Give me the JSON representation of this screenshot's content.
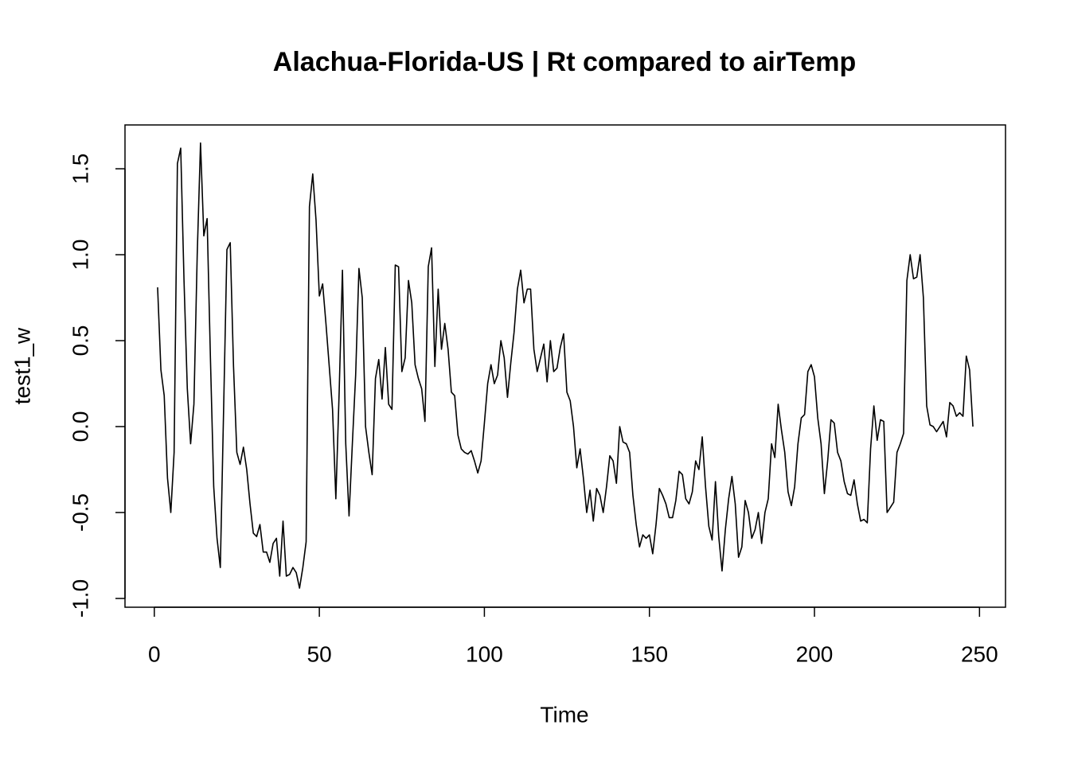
{
  "chart_data": {
    "type": "line",
    "title": "Alachua-Florida-US | Rt compared to airTemp",
    "xlabel": "Time",
    "ylabel": "test1_w",
    "color": "#000000",
    "x": [
      1,
      2,
      3,
      4,
      5,
      6,
      7,
      8,
      9,
      10,
      11,
      12,
      13,
      14,
      15,
      16,
      17,
      18,
      19,
      20,
      21,
      22,
      23,
      24,
      25,
      26,
      27,
      28,
      29,
      30,
      31,
      32,
      33,
      34,
      35,
      36,
      37,
      38,
      39,
      40,
      41,
      42,
      43,
      44,
      45,
      46,
      47,
      48,
      49,
      50,
      51,
      52,
      53,
      54,
      55,
      56,
      57,
      58,
      59,
      60,
      61,
      62,
      63,
      64,
      65,
      66,
      67,
      68,
      69,
      70,
      71,
      72,
      73,
      74,
      75,
      76,
      77,
      78,
      79,
      80,
      81,
      82,
      83,
      84,
      85,
      86,
      87,
      88,
      89,
      90,
      91,
      92,
      93,
      94,
      95,
      96,
      97,
      98,
      99,
      100,
      101,
      102,
      103,
      104,
      105,
      106,
      107,
      108,
      109,
      110,
      111,
      112,
      113,
      114,
      115,
      116,
      117,
      118,
      119,
      120,
      121,
      122,
      123,
      124,
      125,
      126,
      127,
      128,
      129,
      130,
      131,
      132,
      133,
      134,
      135,
      136,
      137,
      138,
      139,
      140,
      141,
      142,
      143,
      144,
      145,
      146,
      147,
      148,
      149,
      150,
      151,
      152,
      153,
      154,
      155,
      156,
      157,
      158,
      159,
      160,
      161,
      162,
      163,
      164,
      165,
      166,
      167,
      168,
      169,
      170,
      171,
      172,
      173,
      174,
      175,
      176,
      177,
      178,
      179,
      180,
      181,
      182,
      183,
      184,
      185,
      186,
      187,
      188,
      189,
      190,
      191,
      192,
      193,
      194,
      195,
      196,
      197,
      198,
      199,
      200,
      201,
      202,
      203,
      204,
      205,
      206,
      207,
      208,
      209,
      210,
      211,
      212,
      213,
      214,
      215,
      216,
      217,
      218,
      219,
      220,
      221,
      222,
      223,
      224,
      225,
      226,
      227,
      228,
      229,
      230,
      231,
      232,
      233,
      234,
      235,
      236,
      237,
      238,
      239,
      240,
      241,
      242,
      243,
      244,
      245,
      246,
      247,
      248
    ],
    "values": [
      0.81,
      0.33,
      0.18,
      -0.3,
      -0.5,
      -0.15,
      1.53,
      1.62,
      0.85,
      0.22,
      -0.1,
      0.13,
      1.0,
      1.65,
      1.11,
      1.21,
      0.4,
      -0.35,
      -0.65,
      -0.82,
      0.1,
      1.03,
      1.07,
      0.35,
      -0.15,
      -0.22,
      -0.12,
      -0.25,
      -0.45,
      -0.62,
      -0.64,
      -0.57,
      -0.73,
      -0.73,
      -0.79,
      -0.68,
      -0.65,
      -0.87,
      -0.55,
      -0.87,
      -0.86,
      -0.82,
      -0.85,
      -0.94,
      -0.82,
      -0.67,
      1.28,
      1.47,
      1.2,
      0.76,
      0.83,
      0.6,
      0.35,
      0.1,
      -0.42,
      0.2,
      0.91,
      -0.1,
      -0.52,
      -0.1,
      0.3,
      0.92,
      0.75,
      0.0,
      -0.15,
      -0.28,
      0.28,
      0.39,
      0.16,
      0.46,
      0.13,
      0.1,
      0.94,
      0.93,
      0.32,
      0.4,
      0.85,
      0.72,
      0.36,
      0.28,
      0.22,
      0.03,
      0.93,
      1.04,
      0.35,
      0.8,
      0.45,
      0.6,
      0.45,
      0.2,
      0.18,
      -0.05,
      -0.13,
      -0.15,
      -0.16,
      -0.14,
      -0.2,
      -0.27,
      -0.2,
      0.02,
      0.25,
      0.36,
      0.25,
      0.3,
      0.5,
      0.4,
      0.17,
      0.37,
      0.55,
      0.8,
      0.91,
      0.72,
      0.8,
      0.8,
      0.45,
      0.32,
      0.4,
      0.48,
      0.26,
      0.5,
      0.32,
      0.34,
      0.46,
      0.54,
      0.2,
      0.15,
      0.0,
      -0.24,
      -0.13,
      -0.3,
      -0.5,
      -0.37,
      -0.55,
      -0.36,
      -0.4,
      -0.5,
      -0.35,
      -0.17,
      -0.2,
      -0.33,
      0.0,
      -0.09,
      -0.1,
      -0.15,
      -0.4,
      -0.57,
      -0.7,
      -0.63,
      -0.65,
      -0.63,
      -0.74,
      -0.57,
      -0.36,
      -0.4,
      -0.45,
      -0.53,
      -0.53,
      -0.43,
      -0.26,
      -0.28,
      -0.42,
      -0.45,
      -0.38,
      -0.2,
      -0.25,
      -0.06,
      -0.35,
      -0.58,
      -0.66,
      -0.32,
      -0.64,
      -0.84,
      -0.6,
      -0.42,
      -0.29,
      -0.45,
      -0.76,
      -0.7,
      -0.43,
      -0.5,
      -0.65,
      -0.6,
      -0.5,
      -0.68,
      -0.5,
      -0.42,
      -0.1,
      -0.18,
      0.13,
      -0.02,
      -0.15,
      -0.38,
      -0.46,
      -0.35,
      -0.1,
      0.05,
      0.07,
      0.32,
      0.36,
      0.29,
      0.05,
      -0.1,
      -0.39,
      -0.2,
      0.04,
      0.02,
      -0.15,
      -0.2,
      -0.32,
      -0.39,
      -0.4,
      -0.31,
      -0.45,
      -0.55,
      -0.54,
      -0.56,
      -0.13,
      0.12,
      -0.08,
      0.04,
      0.03,
      -0.5,
      -0.47,
      -0.44,
      -0.15,
      -0.1,
      -0.04,
      0.85,
      1.0,
      0.86,
      0.87,
      1.0,
      0.75,
      0.12,
      0.01,
      0.0,
      -0.03,
      0.0,
      0.03,
      -0.06,
      0.14,
      0.12,
      0.06,
      0.08,
      0.06,
      0.41,
      0.33,
      0.0
    ],
    "xlim": [
      -8.88,
      257.88
    ],
    "xticks": [
      0,
      50,
      100,
      150,
      200,
      250
    ],
    "ylim": [
      -1.051,
      1.755
    ],
    "yticks": [
      {
        "value": -1,
        "label": "-1.0"
      },
      {
        "value": -0.5,
        "label": "-0.5"
      },
      {
        "value": 0,
        "label": "0.0"
      },
      {
        "value": 0.5,
        "label": "0.5"
      },
      {
        "value": 1,
        "label": "1.0"
      },
      {
        "value": 1.5,
        "label": "1.5"
      }
    ]
  }
}
